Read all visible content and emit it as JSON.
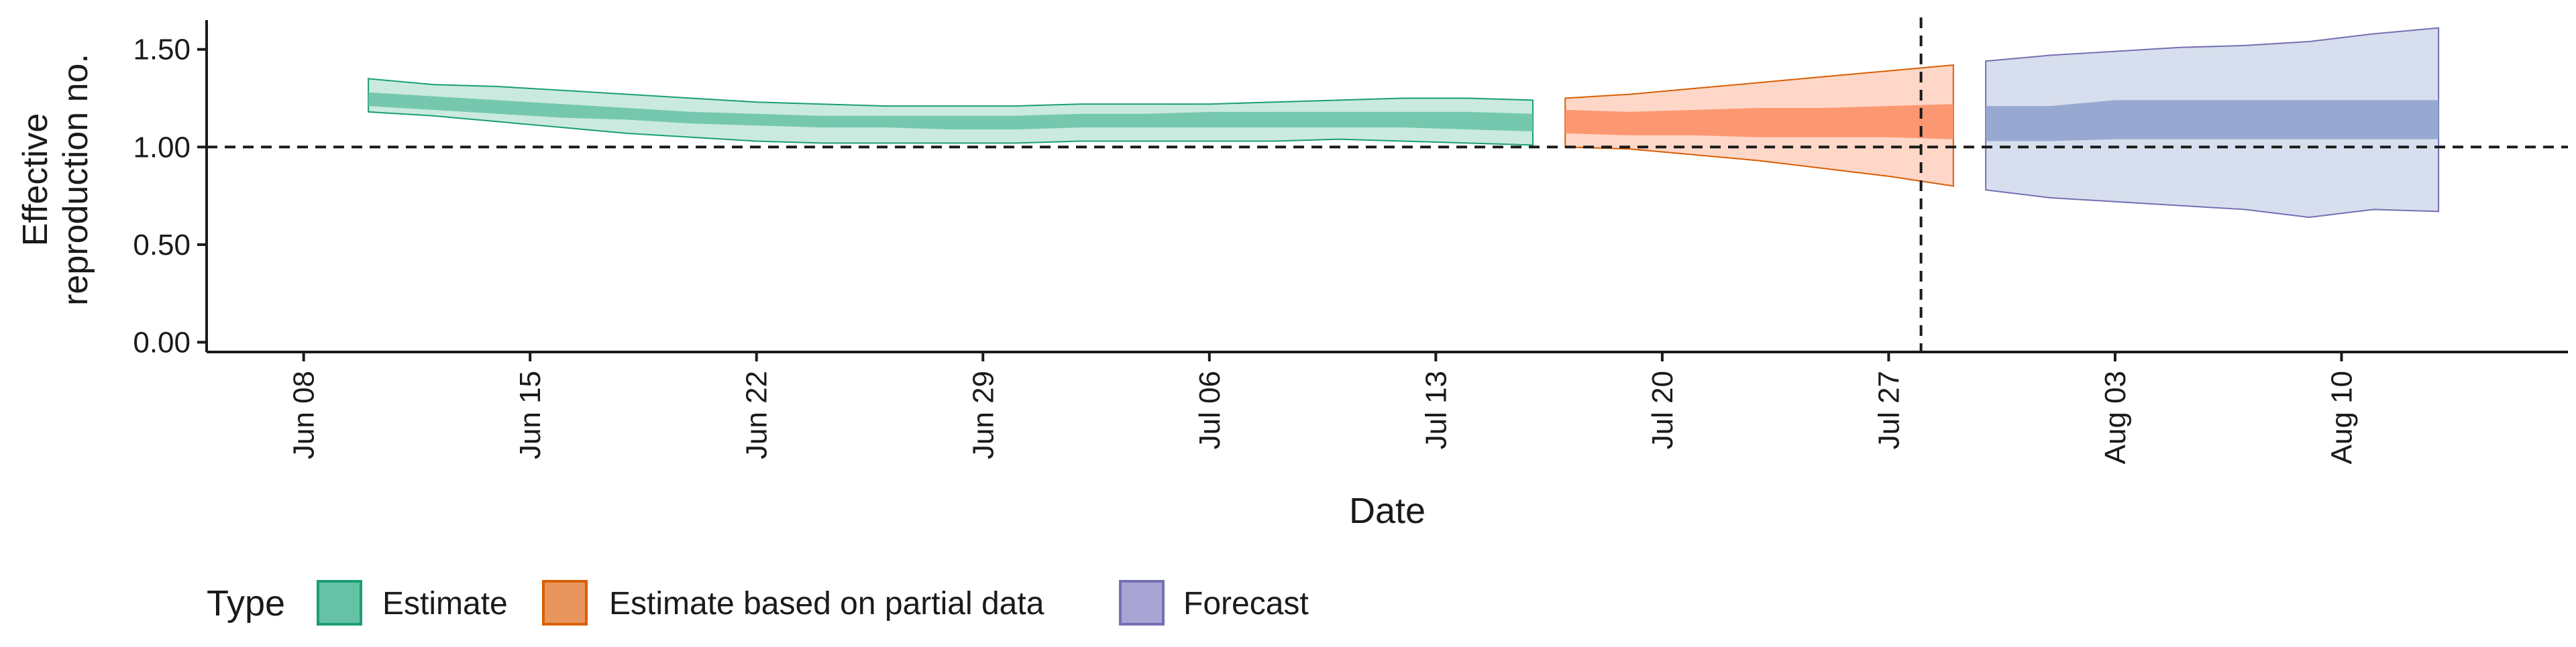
{
  "chart_data": {
    "type": "area",
    "xlabel": "Date",
    "ylabel_lines": [
      "Effective",
      "reproduction no."
    ],
    "ylim": [
      0,
      1.6
    ],
    "xlim": [
      "2020-06-05",
      "2020-08-17"
    ],
    "y_ticks": [
      {
        "value": 0.0,
        "label": "0.00"
      },
      {
        "value": 0.5,
        "label": "0.50"
      },
      {
        "value": 1.0,
        "label": "1.00"
      },
      {
        "value": 1.5,
        "label": "1.50"
      }
    ],
    "x_ticks": [
      {
        "date": "2020-06-08",
        "label": "Jun 08"
      },
      {
        "date": "2020-06-15",
        "label": "Jun 15"
      },
      {
        "date": "2020-06-22",
        "label": "Jun 22"
      },
      {
        "date": "2020-06-29",
        "label": "Jun 29"
      },
      {
        "date": "2020-07-06",
        "label": "Jul 06"
      },
      {
        "date": "2020-07-13",
        "label": "Jul 13"
      },
      {
        "date": "2020-07-20",
        "label": "Jul 20"
      },
      {
        "date": "2020-07-27",
        "label": "Jul 27"
      },
      {
        "date": "2020-08-03",
        "label": "Aug 03"
      },
      {
        "date": "2020-08-10",
        "label": "Aug 10"
      }
    ],
    "reference_lines": [
      {
        "axis": "y",
        "value": 1.0,
        "style": "dashed"
      },
      {
        "axis": "x",
        "date": "2020-07-28",
        "style": "dashed"
      }
    ],
    "legend": {
      "title": "Type",
      "position": "bottom-left",
      "entries": [
        {
          "label": "Estimate",
          "fill": "#66c2a5",
          "stroke": "#1b9e77"
        },
        {
          "label": "Estimate based on partial data",
          "fill": "#fc8d62",
          "stroke": "#d95f02"
        },
        {
          "label": "Forecast",
          "fill": "#8da0cb",
          "stroke": "#7570b3"
        }
      ]
    },
    "series": [
      {
        "name": "Estimate",
        "fill": "#66c2a5",
        "stroke": "#1b9e77",
        "x": [
          "2020-06-10",
          "2020-06-12",
          "2020-06-14",
          "2020-06-16",
          "2020-06-18",
          "2020-06-20",
          "2020-06-22",
          "2020-06-24",
          "2020-06-26",
          "2020-06-28",
          "2020-06-30",
          "2020-07-02",
          "2020-07-04",
          "2020-07-06",
          "2020-07-08",
          "2020-07-10",
          "2020-07-12",
          "2020-07-14",
          "2020-07-16"
        ],
        "outer_low": [
          1.18,
          1.16,
          1.13,
          1.1,
          1.07,
          1.05,
          1.03,
          1.02,
          1.02,
          1.02,
          1.02,
          1.03,
          1.03,
          1.03,
          1.03,
          1.04,
          1.03,
          1.02,
          1.01
        ],
        "outer_high": [
          1.35,
          1.32,
          1.31,
          1.29,
          1.27,
          1.25,
          1.23,
          1.22,
          1.21,
          1.21,
          1.21,
          1.22,
          1.22,
          1.22,
          1.23,
          1.24,
          1.25,
          1.25,
          1.24
        ],
        "inner_low": [
          1.21,
          1.19,
          1.17,
          1.15,
          1.14,
          1.12,
          1.11,
          1.1,
          1.1,
          1.09,
          1.09,
          1.1,
          1.1,
          1.1,
          1.1,
          1.1,
          1.1,
          1.09,
          1.08
        ],
        "inner_high": [
          1.28,
          1.26,
          1.24,
          1.22,
          1.2,
          1.18,
          1.17,
          1.16,
          1.16,
          1.16,
          1.16,
          1.17,
          1.17,
          1.18,
          1.18,
          1.18,
          1.18,
          1.18,
          1.17
        ]
      },
      {
        "name": "Estimate based on partial data",
        "fill": "#fc8d62",
        "stroke": "#d95f02",
        "x": [
          "2020-07-17",
          "2020-07-19",
          "2020-07-21",
          "2020-07-23",
          "2020-07-25",
          "2020-07-27",
          "2020-07-29"
        ],
        "outer_low": [
          1.0,
          0.99,
          0.96,
          0.93,
          0.89,
          0.85,
          0.8
        ],
        "outer_high": [
          1.25,
          1.27,
          1.3,
          1.33,
          1.36,
          1.39,
          1.42
        ],
        "inner_low": [
          1.07,
          1.06,
          1.06,
          1.05,
          1.05,
          1.05,
          1.04
        ],
        "inner_high": [
          1.19,
          1.18,
          1.19,
          1.2,
          1.2,
          1.21,
          1.22
        ]
      },
      {
        "name": "Forecast",
        "fill": "#8da0cb",
        "stroke": "#7570b3",
        "x": [
          "2020-07-30",
          "2020-08-01",
          "2020-08-03",
          "2020-08-05",
          "2020-08-07",
          "2020-08-09",
          "2020-08-11",
          "2020-08-13"
        ],
        "outer_low": [
          0.78,
          0.74,
          0.72,
          0.7,
          0.68,
          0.64,
          0.68,
          0.67
        ],
        "outer_high": [
          1.44,
          1.47,
          1.49,
          1.51,
          1.52,
          1.54,
          1.58,
          1.61
        ],
        "inner_low": [
          1.03,
          1.03,
          1.04,
          1.04,
          1.04,
          1.04,
          1.04,
          1.04
        ],
        "inner_high": [
          1.21,
          1.21,
          1.24,
          1.24,
          1.24,
          1.24,
          1.24,
          1.24
        ]
      }
    ]
  }
}
